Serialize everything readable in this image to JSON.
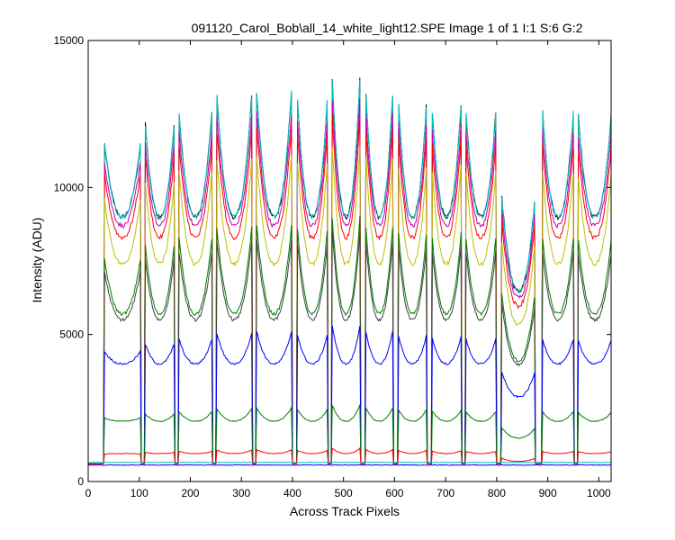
{
  "chart_data": {
    "type": "line",
    "title": "091120_Carol_Bob\\all_14_white_light12.SPE  Image 1 of 1  I:1  S:6  G:2",
    "xlabel": "Across Track Pixels",
    "ylabel": "Intensity (ADU)",
    "xlim": [
      0,
      1024
    ],
    "ylim": [
      0,
      15000
    ],
    "xticks": [
      0,
      100,
      200,
      300,
      400,
      500,
      600,
      700,
      800,
      900,
      1000
    ],
    "yticks": [
      0,
      5000,
      10000,
      15000
    ],
    "grid": false,
    "legend": "none",
    "spectral_bands": {
      "band_left_edges": [
        32,
        112,
        178,
        252,
        330,
        410,
        477,
        543,
        607,
        673,
        740,
        810,
        890,
        960
      ],
      "band_right_edges": [
        102,
        168,
        242,
        320,
        398,
        468,
        533,
        597,
        663,
        730,
        798,
        875,
        950,
        1024
      ],
      "gaps_bottom": 600
    },
    "series": [
      {
        "color": "#000000",
        "peak_level": 13500,
        "trough_level": 9000
      },
      {
        "color": "#00bfbf",
        "peak_level": 13500,
        "trough_level": 9000
      },
      {
        "color": "#bf00bf",
        "peak_level": 12800,
        "trough_level": 8700
      },
      {
        "color": "#ff0000",
        "peak_level": 12300,
        "trough_level": 8300
      },
      {
        "color": "#bfbf00",
        "peak_level": 11300,
        "trough_level": 7400
      },
      {
        "color": "#007f00",
        "peak_level": 8900,
        "trough_level": 5700
      },
      {
        "color": "#404040",
        "peak_level": 8400,
        "trough_level": 5500
      },
      {
        "color": "#0000ff",
        "peak_level": 5200,
        "trough_level": 4000
      },
      {
        "color": "#007f00",
        "peak_level": 2550,
        "trough_level": 2050
      },
      {
        "color": "#ff0000",
        "peak_level": 1100,
        "trough_level": 950
      },
      {
        "color": "#00bfbf",
        "peak_level": 650,
        "trough_level": 650
      },
      {
        "color": "#0000ff",
        "peak_level": 560,
        "trough_level": 560
      }
    ]
  }
}
